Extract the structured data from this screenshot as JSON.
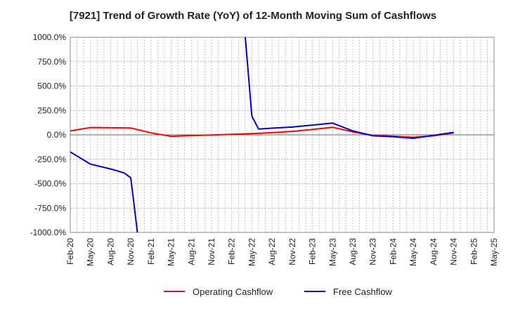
{
  "chart_data": {
    "type": "line",
    "title": "[7921]  Trend of Growth Rate (YoY) of 12-Month Moving Sum of Cashflows",
    "xlabel": "",
    "ylabel": "",
    "ylim": [
      -1000,
      1000
    ],
    "y_ticks": [
      "1000.0%",
      "750.0%",
      "500.0%",
      "250.0%",
      "0.0%",
      "-250.0%",
      "-500.0%",
      "-750.0%",
      "-1000.0%"
    ],
    "y_tick_values": [
      1000,
      750,
      500,
      250,
      0,
      -250,
      -500,
      -750,
      -1000
    ],
    "x_ticks": [
      "Feb-20",
      "May-20",
      "Aug-20",
      "Nov-20",
      "Feb-21",
      "May-21",
      "Aug-21",
      "Nov-21",
      "Feb-22",
      "May-22",
      "Aug-22",
      "Nov-22",
      "Feb-23",
      "May-23",
      "Aug-23",
      "Nov-23",
      "Feb-24",
      "May-24",
      "Aug-24",
      "Nov-24",
      "Feb-25",
      "May-25"
    ],
    "grid": true,
    "legend_position": "bottom",
    "series": [
      {
        "name": "Operating Cashflow",
        "color": "#ff0000",
        "points": [
          [
            "Feb-20",
            40
          ],
          [
            "May-20",
            75
          ],
          [
            "Aug-20",
            73
          ],
          [
            "Nov-20",
            70
          ],
          [
            "Feb-21",
            20
          ],
          [
            "May-21",
            -15
          ],
          [
            "Aug-21",
            -8
          ],
          [
            "Nov-21",
            -2
          ],
          [
            "Feb-22",
            5
          ],
          [
            "May-22",
            12
          ],
          [
            "Aug-22",
            22
          ],
          [
            "Nov-22",
            35
          ],
          [
            "Feb-23",
            55
          ],
          [
            "May-23",
            78
          ],
          [
            "Aug-23",
            30
          ],
          [
            "Nov-23",
            -5
          ],
          [
            "Feb-24",
            -15
          ],
          [
            "May-24",
            -25
          ],
          [
            "Aug-24",
            -10
          ],
          [
            "Nov-24",
            20
          ]
        ]
      },
      {
        "name": "Free Cashflow",
        "color": "#0000cc",
        "points": [
          [
            "Feb-20",
            -175
          ],
          [
            "May-20",
            -300
          ],
          [
            "Aug-20",
            -350
          ],
          [
            "Oct-20",
            -390
          ],
          [
            "Nov-20",
            -440
          ],
          [
            "Dec-20",
            -1010
          ],
          [
            null,
            null
          ],
          [
            "Apr-22",
            1010
          ],
          [
            "May-22",
            190
          ],
          [
            "Jun-22",
            60
          ],
          [
            "Aug-22",
            68
          ],
          [
            "Nov-22",
            80
          ],
          [
            "Feb-23",
            100
          ],
          [
            "May-23",
            120
          ],
          [
            "Aug-23",
            40
          ],
          [
            "Nov-23",
            -10
          ],
          [
            "Feb-24",
            -20
          ],
          [
            "May-24",
            -35
          ],
          [
            "Aug-24",
            -5
          ],
          [
            "Nov-24",
            25
          ]
        ]
      }
    ]
  }
}
